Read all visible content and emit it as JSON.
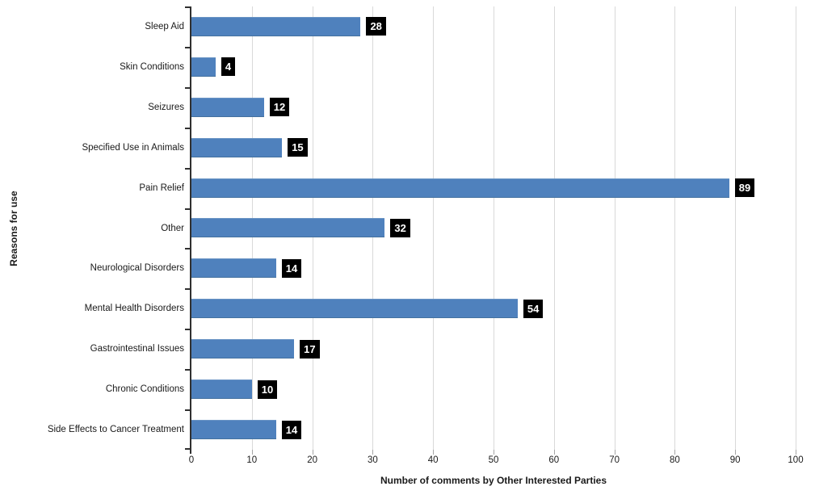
{
  "chart_data": {
    "type": "bar",
    "orientation": "horizontal",
    "categories": [
      "Sleep Aid",
      "Skin Conditions",
      "Seizures",
      "Specified Use in Animals",
      "Pain Relief",
      "Other",
      "Neurological Disorders",
      "Mental Health Disorders",
      "Gastrointestinal Issues",
      "Chronic Conditions",
      "Side Effects to Cancer Treatment"
    ],
    "values": [
      28,
      4,
      12,
      15,
      89,
      32,
      14,
      54,
      17,
      10,
      14
    ],
    "title": "",
    "xlabel": "Number of comments by Other Interested Parties",
    "ylabel": "Reasons for use",
    "xlim": [
      0,
      100
    ],
    "xticks": [
      0,
      10,
      20,
      30,
      40,
      50,
      60,
      70,
      80,
      90,
      100
    ],
    "grid": true,
    "legend": "none",
    "colors": {
      "bar_fill": "#4f81bd",
      "data_label_background": "#000000",
      "data_label_text": "#ffffff",
      "gridline": "#d9d9d9",
      "y_axis_line": "#303030",
      "x_tick": "#a6a6a6",
      "text": "#1a1a1a",
      "background": "#ffffff"
    }
  }
}
